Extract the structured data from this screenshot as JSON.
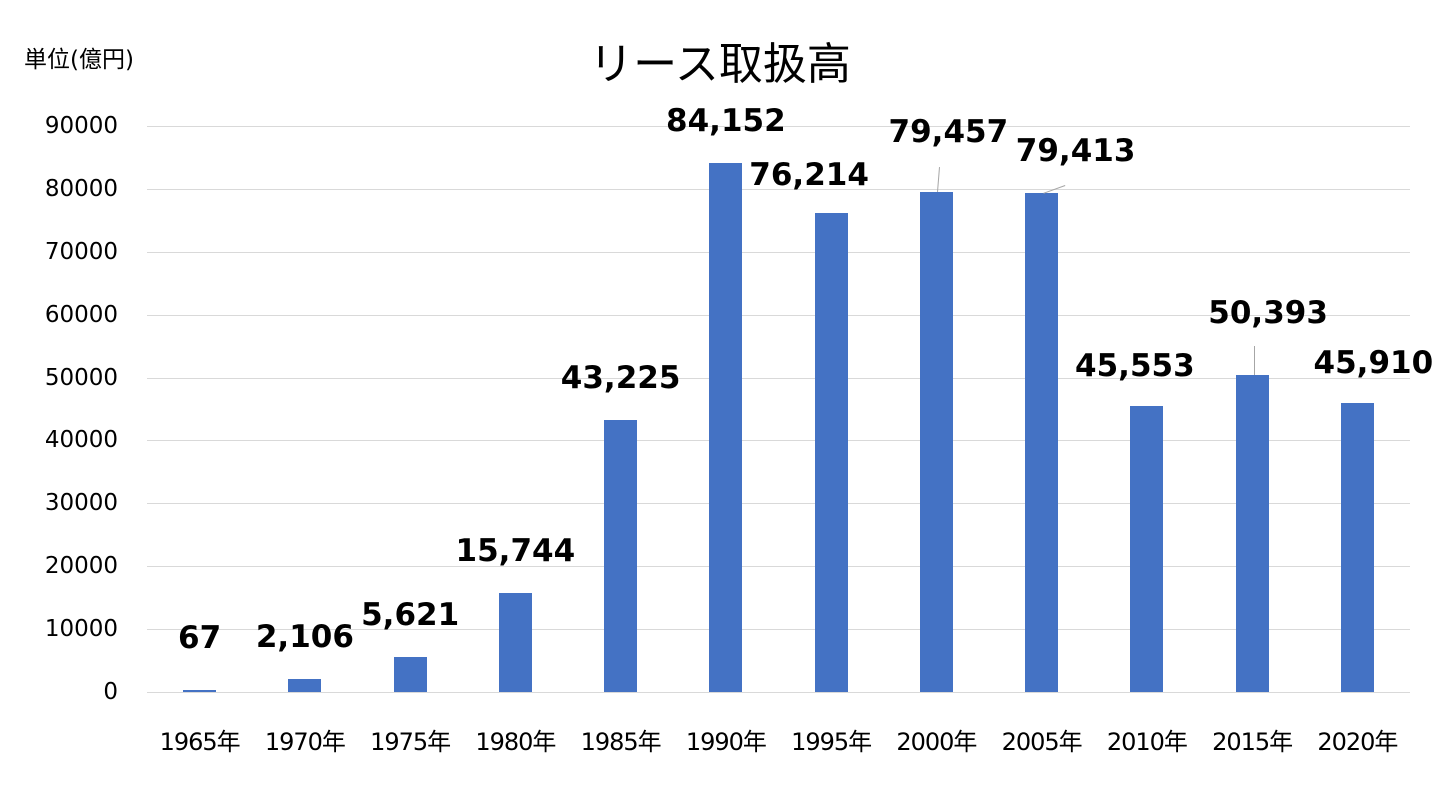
{
  "chart_data": {
    "type": "bar",
    "title": "リース取扱高",
    "unit_label": "単位(億円)",
    "xlabel": "",
    "ylabel": "単位(億円)",
    "ylim": [
      0,
      90000
    ],
    "yticks": [
      0,
      10000,
      20000,
      30000,
      40000,
      50000,
      60000,
      70000,
      80000,
      90000
    ],
    "ytick_labels": [
      "0",
      "10000",
      "20000",
      "30000",
      "40000",
      "50000",
      "60000",
      "70000",
      "80000",
      "90000"
    ],
    "grid": true,
    "legend": null,
    "bar_color": "#4472c4",
    "categories": [
      "1965年",
      "1970年",
      "1975年",
      "1980年",
      "1985年",
      "1990年",
      "1995年",
      "2000年",
      "2005年",
      "2010年",
      "2015年",
      "2020年"
    ],
    "values": [
      67,
      2106,
      5621,
      15744,
      43225,
      84152,
      76214,
      79457,
      79413,
      45553,
      50393,
      45910
    ],
    "data_labels": [
      "67",
      "2,106",
      "5,621",
      "15,744",
      "43,225",
      "84,152",
      "76,214",
      "79,457",
      "79,413",
      "45,553",
      "50,393",
      "45,910"
    ]
  }
}
